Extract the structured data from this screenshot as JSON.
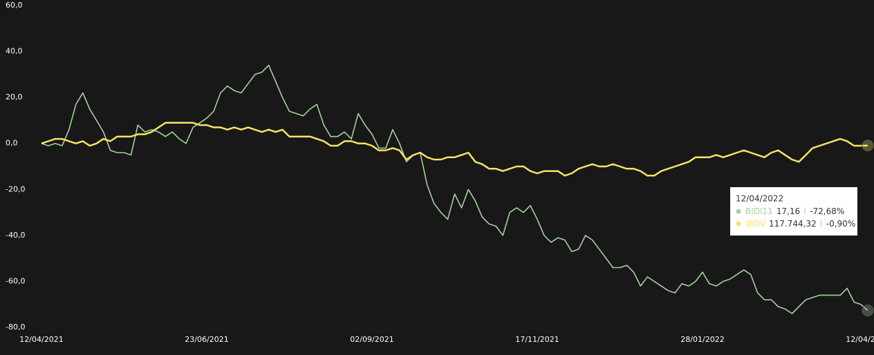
{
  "chart_data": {
    "type": "line",
    "categories": [
      "12/04/2021",
      null,
      null,
      null,
      null,
      null,
      null,
      null,
      null,
      null,
      null,
      null,
      null,
      null,
      null,
      null,
      null,
      null,
      null,
      null,
      null,
      null,
      null,
      null,
      "23/06/2021",
      null,
      null,
      null,
      null,
      null,
      null,
      null,
      null,
      null,
      null,
      null,
      null,
      null,
      null,
      null,
      null,
      null,
      null,
      null,
      null,
      null,
      null,
      null,
      "02/09/2021",
      null,
      null,
      null,
      null,
      null,
      null,
      null,
      null,
      null,
      null,
      null,
      null,
      null,
      null,
      null,
      null,
      null,
      null,
      null,
      null,
      null,
      null,
      null,
      "17/11/2021",
      null,
      null,
      null,
      null,
      null,
      null,
      null,
      null,
      null,
      null,
      null,
      null,
      null,
      null,
      null,
      null,
      null,
      null,
      null,
      null,
      null,
      null,
      null,
      "28/01/2022",
      null,
      null,
      null,
      null,
      null,
      null,
      null,
      null,
      null,
      null,
      null,
      null,
      null,
      null,
      null,
      null,
      null,
      null,
      null,
      null,
      null,
      null,
      null,
      "12/04/2022"
    ],
    "series": [
      {
        "name": "BIDI11",
        "color": "#a3d39c",
        "values": [
          0,
          -1,
          0,
          -1,
          6,
          17,
          22,
          15,
          10,
          5,
          -3,
          -4,
          -4,
          -5,
          8,
          5,
          6,
          5,
          3,
          5,
          2,
          0,
          7,
          9,
          11,
          14,
          22,
          25,
          23,
          22,
          26,
          30,
          31,
          34,
          27,
          20,
          14,
          13,
          12,
          15,
          17,
          8,
          3,
          3,
          5,
          2,
          13,
          8,
          4,
          -2,
          -2,
          6,
          0,
          -8,
          -5,
          -4,
          -18,
          -26,
          -30,
          -33,
          -22,
          -28,
          -20,
          -25,
          -32,
          -35,
          -36,
          -40,
          -30,
          -28,
          -30,
          -27,
          -33,
          -40,
          -43,
          -41,
          -42,
          -47,
          -46,
          -40,
          -42,
          -46,
          -50,
          -54,
          -54,
          -53,
          -56,
          -62,
          -58,
          -60,
          -62,
          -64,
          -65,
          -61,
          -62,
          -60,
          -56,
          -61,
          -62,
          -60,
          -59,
          -57,
          -55,
          -57,
          -65,
          -68,
          -68,
          -71,
          -72,
          -74,
          -71,
          -68,
          -67,
          -66,
          -66,
          -66,
          -66,
          -63,
          -69,
          -70,
          -72.68
        ]
      },
      {
        "name": "IBOV",
        "color": "#f7e463",
        "values": [
          0,
          1,
          2,
          2,
          1,
          0,
          1,
          -1,
          0,
          2,
          1,
          3,
          3,
          3,
          4,
          4,
          5,
          7,
          9,
          9,
          9,
          9,
          9,
          8,
          8,
          7,
          7,
          6,
          7,
          6,
          7,
          6,
          5,
          6,
          5,
          6,
          3,
          3,
          3,
          3,
          2,
          1,
          -1,
          -1,
          1,
          1,
          0,
          0,
          -1,
          -3,
          -3,
          -2,
          -3,
          -7,
          -5,
          -4,
          -6,
          -7,
          -7,
          -6,
          -6,
          -5,
          -4,
          -8,
          -9,
          -11,
          -11,
          -12,
          -11,
          -10,
          -10,
          -12,
          -13,
          -12,
          -12,
          -12,
          -14,
          -13,
          -11,
          -10,
          -9,
          -10,
          -10,
          -9,
          -10,
          -11,
          -11,
          -12,
          -14,
          -14,
          -12,
          -11,
          -10,
          -9,
          -8,
          -6,
          -6,
          -6,
          -5,
          -6,
          -5,
          -4,
          -3,
          -4,
          -5,
          -6,
          -4,
          -3,
          -5,
          -7,
          -8,
          -5,
          -2,
          -1,
          0,
          1,
          2,
          1,
          -1,
          -1,
          -0.9
        ]
      }
    ],
    "ylim": [
      -80,
      60
    ],
    "yticks": [
      {
        "value": -80,
        "label": "-80,0"
      },
      {
        "value": -60,
        "label": "-60,0"
      },
      {
        "value": -40,
        "label": "-40,0"
      },
      {
        "value": -20,
        "label": "-20,0"
      },
      {
        "value": 0,
        "label": "0,0"
      },
      {
        "value": 20,
        "label": "20,0"
      },
      {
        "value": 40,
        "label": "40,0"
      },
      {
        "value": 60,
        "label": "60,0"
      }
    ],
    "grid": false
  },
  "tooltip": {
    "date": "12/04/2022",
    "rows": [
      {
        "price": "17,16",
        "change": "-72,68%"
      },
      {
        "price": "117.744,32",
        "change": "-0,90%"
      }
    ]
  }
}
